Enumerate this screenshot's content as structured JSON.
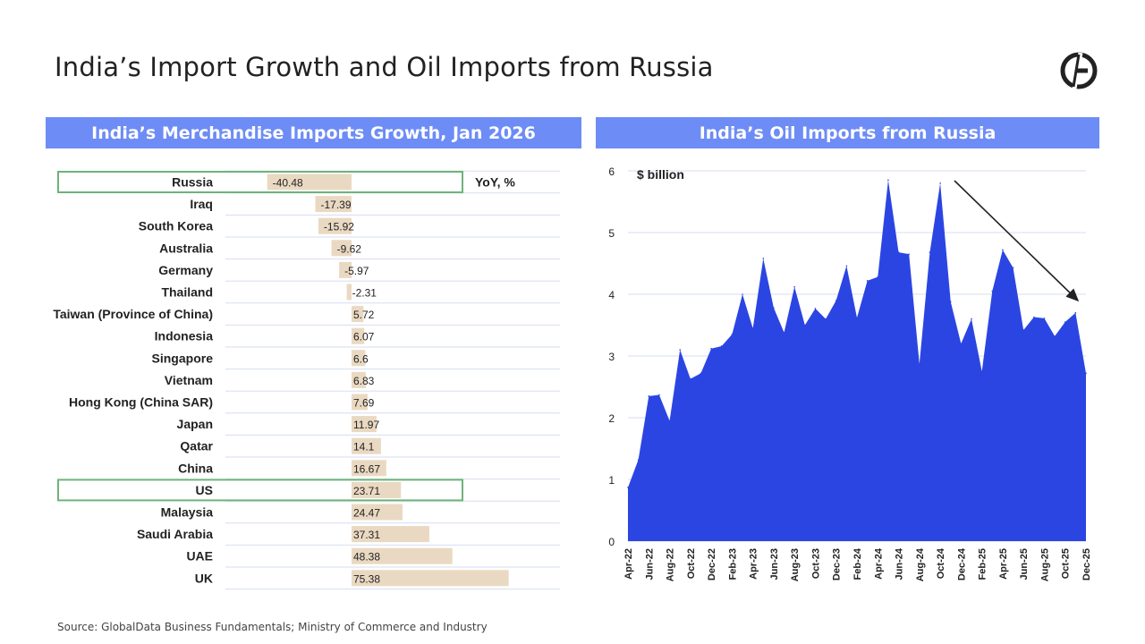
{
  "page": {
    "title": "India’s Import Growth and Oil Imports from Russia",
    "source": "Source: GlobalData Business Fundamentals; Ministry of Commerce and Industry",
    "logo_icon": "globaldata-logo-icon"
  },
  "colors": {
    "band": "#6d8cf6",
    "bar": "#ead9c2",
    "area": "#2b45e3",
    "highlight": "#6db37a",
    "grid": "#d6ddf0"
  },
  "chart_data": [
    {
      "type": "bar",
      "orientation": "horizontal",
      "title": "India’s Merchandise Imports Growth, Jan 2026",
      "unit_label": "YoY, %",
      "xlim": [
        -75,
        115
      ],
      "highlighted": [
        "Russia",
        "US"
      ],
      "categories": [
        "Russia",
        "Iraq",
        "South Korea",
        "Australia",
        "Germany",
        "Thailand",
        "Taiwan (Province of China)",
        "Indonesia",
        "Singapore",
        "Vietnam",
        "Hong Kong (China SAR)",
        "Japan",
        "Qatar",
        "China",
        "US",
        "Malaysia",
        "Saudi Arabia",
        "UAE",
        "UK"
      ],
      "values": [
        -40.48,
        -17.39,
        -15.92,
        -9.62,
        -5.97,
        -2.31,
        5.72,
        6.07,
        6.6,
        6.83,
        7.69,
        11.97,
        14.1,
        16.67,
        23.71,
        24.47,
        37.31,
        48.38,
        75.38
      ],
      "value_labels": [
        "-40.48",
        "-17.39",
        "-15.92",
        "-9.62",
        "-5.97",
        "-2.31",
        "5.72",
        "6.07",
        "6.6",
        "6.83",
        "7.69",
        "11.97",
        "14.1",
        "16.67",
        "23.71",
        "24.47",
        "37.31",
        "48.38",
        "75.38"
      ]
    },
    {
      "type": "area",
      "title": "India’s Oil Imports from Russia",
      "ylabel": "$ billion",
      "ylim": [
        0,
        6
      ],
      "yticks": [
        "0",
        "1",
        "2",
        "3",
        "4",
        "5",
        "6"
      ],
      "x_tick_labels": [
        "Apr-22",
        "Jun-22",
        "Aug-22",
        "Oct-22",
        "Dec-22",
        "Feb-23",
        "Apr-23",
        "Jun-23",
        "Aug-23",
        "Oct-23",
        "Dec-23",
        "Feb-24",
        "Apr-24",
        "Jun-24",
        "Aug-24",
        "Oct-24",
        "Dec-24",
        "Feb-25",
        "Apr-25",
        "Jun-25",
        "Aug-25",
        "Oct-25",
        "Dec-25"
      ],
      "series": [
        {
          "name": "Oil imports from Russia",
          "x": [
            "Apr-22",
            "May-22",
            "Jun-22",
            "Jul-22",
            "Aug-22",
            "Sep-22",
            "Oct-22",
            "Nov-22",
            "Dec-22",
            "Jan-23",
            "Feb-23",
            "Mar-23",
            "Apr-23",
            "May-23",
            "Jun-23",
            "Jul-23",
            "Aug-23",
            "Sep-23",
            "Oct-23",
            "Nov-23",
            "Dec-23",
            "Jan-24",
            "Feb-24",
            "Mar-24",
            "Apr-24",
            "May-24",
            "Jun-24",
            "Jul-24",
            "Aug-24",
            "Sep-24",
            "Oct-24",
            "Nov-24",
            "Dec-24",
            "Jan-25",
            "Feb-25",
            "Mar-25",
            "Apr-25",
            "May-25",
            "Jun-25",
            "Jul-25",
            "Aug-25",
            "Sep-25",
            "Oct-25",
            "Nov-25",
            "Dec-25"
          ],
          "values": [
            0.87,
            1.32,
            2.35,
            2.37,
            1.95,
            3.1,
            2.63,
            2.72,
            3.12,
            3.16,
            3.35,
            4.0,
            3.45,
            4.58,
            3.78,
            3.38,
            4.12,
            3.5,
            3.77,
            3.6,
            3.9,
            4.46,
            3.62,
            4.22,
            4.28,
            5.85,
            4.68,
            4.65,
            2.87,
            4.68,
            5.8,
            3.88,
            3.2,
            3.6,
            2.75,
            4.05,
            4.72,
            4.43,
            3.42,
            3.63,
            3.61,
            3.32,
            3.55,
            3.7,
            2.72
          ]
        }
      ],
      "annotation": "downward trend arrow from Oct-24 peak toward Nov-25"
    }
  ]
}
